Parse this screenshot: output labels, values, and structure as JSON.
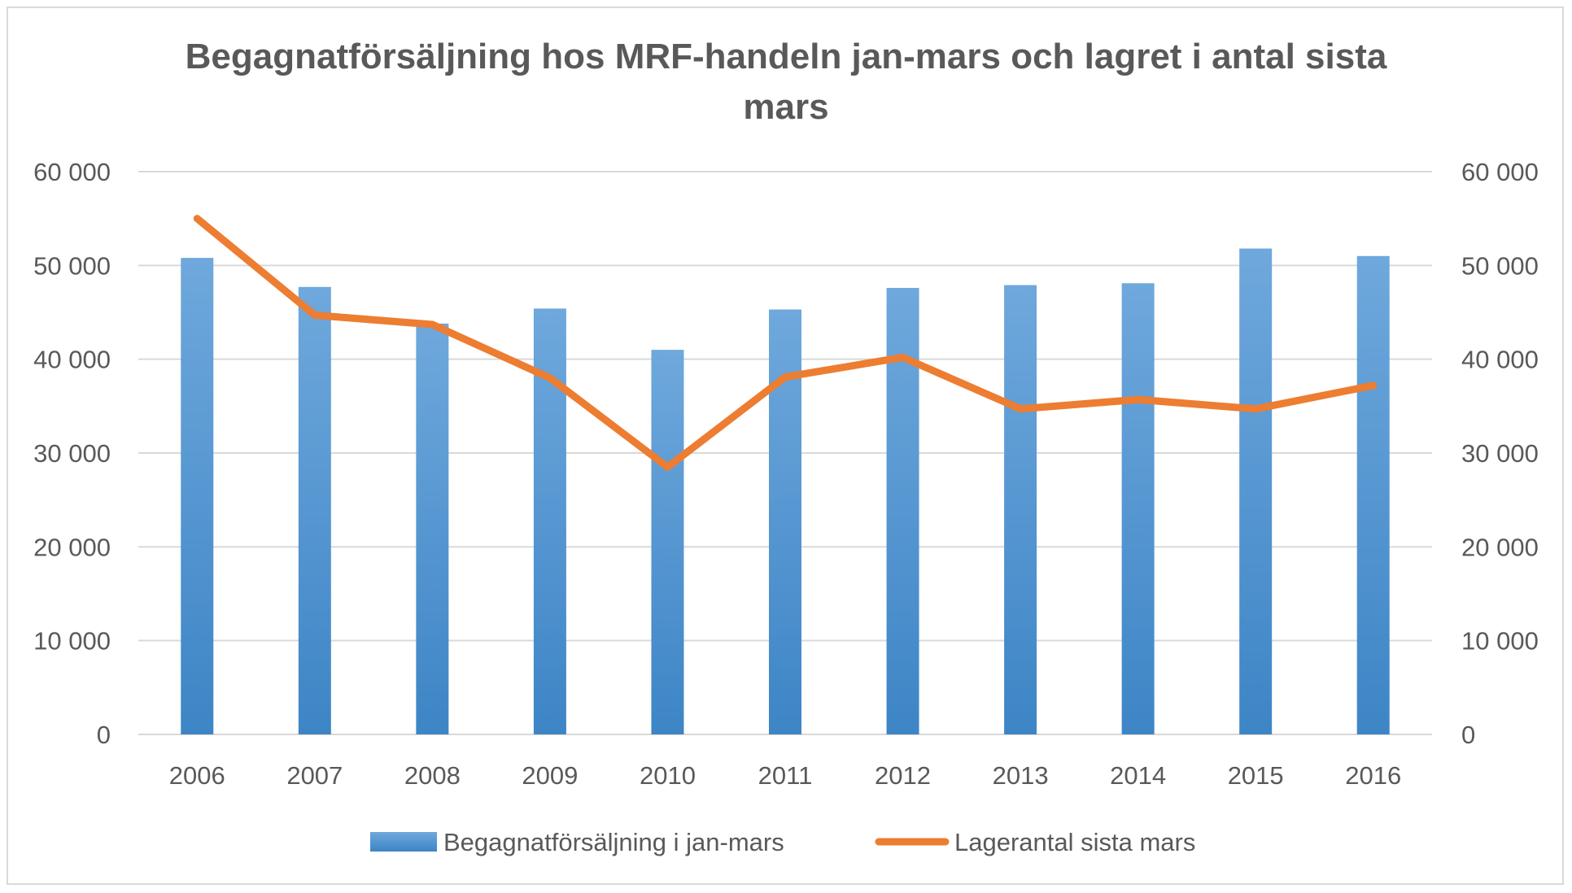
{
  "chart_data": {
    "type": "bar",
    "title": "Begagnatförsäljning hos MRF-handeln jan-mars och lagret i antal sista mars",
    "title_lines": [
      "Begagnatförsäljning hos MRF-handeln jan-mars och lagret i antal sista",
      "mars"
    ],
    "categories": [
      "2006",
      "2007",
      "2008",
      "2009",
      "2010",
      "2011",
      "2012",
      "2013",
      "2014",
      "2015",
      "2016"
    ],
    "series": [
      {
        "name": "Begagnatförsäljning i jan-mars",
        "type": "bar",
        "axis": "left",
        "color": "#5b9bd5",
        "values": [
          50800,
          47700,
          43800,
          45400,
          41000,
          45300,
          47600,
          47900,
          48100,
          51800,
          51000
        ]
      },
      {
        "name": "Lagerantal sista mars",
        "type": "line",
        "axis": "right",
        "color": "#ed7d31",
        "values": [
          55000,
          44700,
          43700,
          38000,
          28500,
          38100,
          40200,
          34700,
          35700,
          34700,
          37200
        ]
      }
    ],
    "y_left": {
      "ylim": [
        0,
        60000
      ],
      "ticks": [
        0,
        10000,
        20000,
        30000,
        40000,
        50000,
        60000
      ],
      "tick_labels": [
        "0",
        "10 000",
        "20 000",
        "30 000",
        "40 000",
        "50 000",
        "60 000"
      ]
    },
    "y_right": {
      "ylim": [
        0,
        60000
      ],
      "ticks": [
        0,
        10000,
        20000,
        30000,
        40000,
        50000,
        60000
      ],
      "tick_labels": [
        "0",
        "10 000",
        "20 000",
        "30 000",
        "40 000",
        "50 000",
        "60 000"
      ]
    },
    "xlabel": "",
    "ylabel": "",
    "grid": true,
    "legend_position": "bottom",
    "colors": {
      "bar": "#5b9bd5",
      "line": "#ed7d31",
      "grid": "#d9d9d9",
      "text": "#595959"
    }
  }
}
